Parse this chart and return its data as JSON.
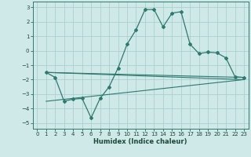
{
  "xlabel": "Humidex (Indice chaleur)",
  "bg_color": "#cfe8e8",
  "grid_color": "#aacfcf",
  "line_color": "#2d7a6e",
  "xlim": [
    -0.5,
    23.5
  ],
  "ylim": [
    -5.4,
    3.4
  ],
  "yticks": [
    -5,
    -4,
    -3,
    -2,
    -1,
    0,
    1,
    2,
    3
  ],
  "xticks": [
    0,
    1,
    2,
    3,
    4,
    5,
    6,
    7,
    8,
    9,
    10,
    11,
    12,
    13,
    14,
    15,
    16,
    17,
    18,
    19,
    20,
    21,
    22,
    23
  ],
  "line1_x": [
    1,
    2,
    3,
    4,
    5,
    6,
    7,
    8,
    9,
    10,
    11,
    12,
    13,
    14,
    15,
    16,
    17,
    18,
    19,
    20,
    21,
    22,
    23
  ],
  "line1_y": [
    -1.5,
    -1.85,
    -3.5,
    -3.35,
    -3.3,
    -4.65,
    -3.3,
    -2.5,
    -1.2,
    0.45,
    1.45,
    2.85,
    2.85,
    1.65,
    2.6,
    2.7,
    0.45,
    -0.2,
    -0.1,
    -0.15,
    -0.5,
    -1.8,
    -1.85
  ],
  "line2_x": [
    1,
    23
  ],
  "line2_y": [
    -1.5,
    -1.85
  ],
  "line3_x": [
    1,
    23
  ],
  "line3_y": [
    -1.5,
    -2.0
  ],
  "line4_x": [
    1,
    23
  ],
  "line4_y": [
    -3.5,
    -2.0
  ]
}
